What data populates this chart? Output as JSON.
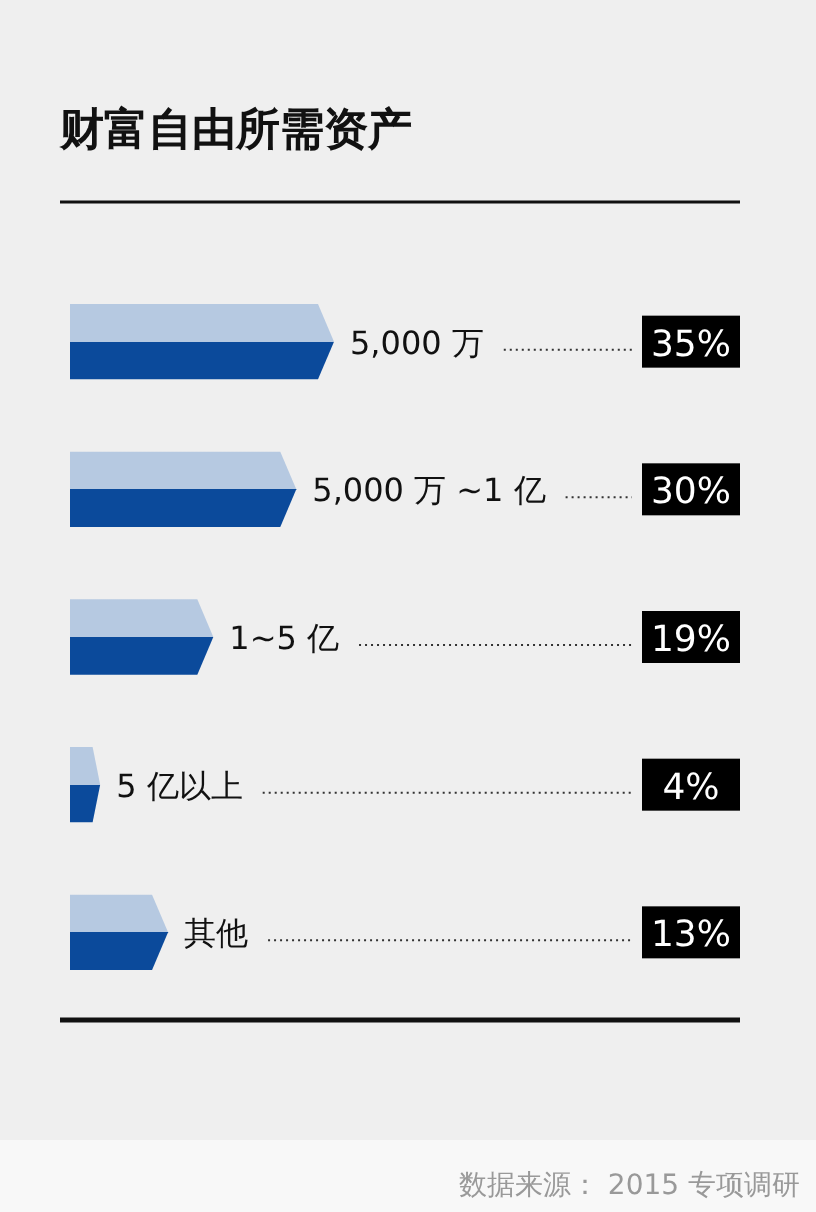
{
  "chart_data": {
    "type": "bar",
    "orientation": "horizontal",
    "title": "财富自由所需资产",
    "categories": [
      "5,000 万",
      "5,000 万 ~1 亿",
      "1~5 亿",
      "5 亿以上",
      "其他"
    ],
    "values": [
      35,
      30,
      19,
      4,
      13
    ],
    "value_labels": [
      "35%",
      "30%",
      "19%",
      "4%",
      "13%"
    ],
    "color": "#0b4a9b",
    "annotations": [
      "数据来源： 2015 专项调研"
    ]
  }
}
